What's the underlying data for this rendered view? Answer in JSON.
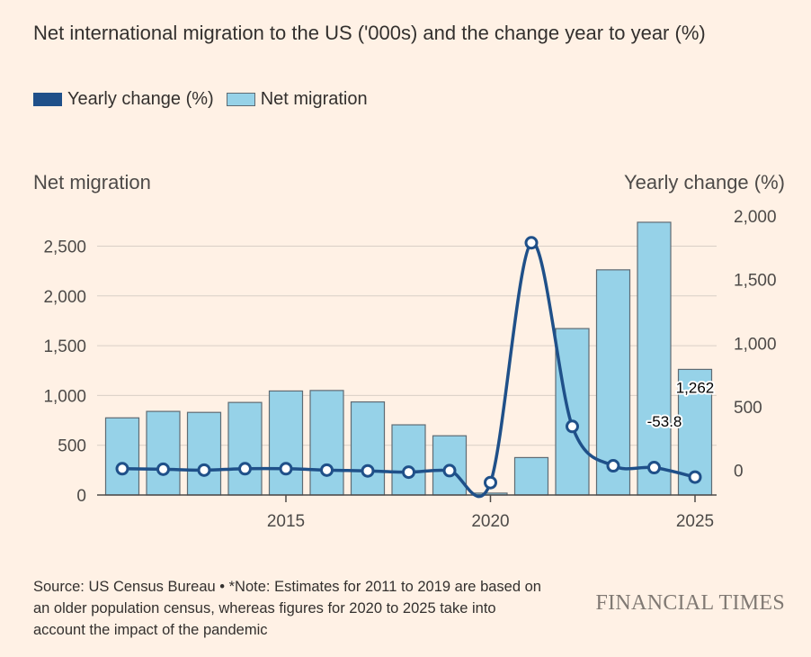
{
  "title": "Net international migration to the US ('000s) and the change year to year (%)",
  "legend": [
    {
      "label": "Yearly change (%)",
      "color": "#1f5089"
    },
    {
      "label": "Net migration",
      "color": "#96d2e8"
    }
  ],
  "left_axis_title": "Net migration",
  "right_axis_title": "Yearly change (%)",
  "source": "Source: US Census Bureau • *Note: Estimates for 2011 to 2019 are based on an older population census, whereas figures for 2020 to 2025 take into account the impact of the pandemic",
  "brand": "FINANCIAL TIMES",
  "chart_data": {
    "type": "bar",
    "title": "Net international migration to the US ('000s) and the change year to year (%)",
    "x": [
      2011,
      2012,
      2013,
      2014,
      2015,
      2016,
      2017,
      2018,
      2019,
      2020,
      2021,
      2022,
      2023,
      2024,
      2025
    ],
    "x_ticks": [
      2015,
      2020,
      2025
    ],
    "x_tick_labels": [
      "2015",
      "2020",
      "2025"
    ],
    "series": [
      {
        "name": "Net migration",
        "type": "bar",
        "axis": "left",
        "color": "#96d2e8",
        "values": [
          775,
          840,
          830,
          930,
          1045,
          1050,
          935,
          705,
          595,
          19,
          376,
          1672,
          2262,
          2740,
          1262
        ]
      },
      {
        "name": "Yearly change (%)",
        "type": "line",
        "axis": "right",
        "color": "#1f5089",
        "values": [
          12,
          8,
          1,
          12,
          12,
          1,
          -5,
          -15,
          -3,
          -97,
          1790,
          345,
          35,
          21,
          -53.8
        ]
      }
    ],
    "left_axis": {
      "label": "Net migration",
      "ylim": [
        0,
        2800
      ],
      "ticks": [
        0,
        500,
        1000,
        1500,
        2000,
        2500
      ],
      "tick_labels": [
        "0",
        "500",
        "1,000",
        "1,500",
        "2,000",
        "2,500"
      ]
    },
    "right_axis": {
      "label": "Yearly change (%)",
      "ylim": [
        -195,
        2000
      ],
      "ticks": [
        0,
        500,
        1000,
        1500,
        2000
      ],
      "tick_labels": [
        "0",
        "500",
        "1,000",
        "1,500",
        "2,000"
      ]
    },
    "annotations": [
      {
        "text": "1,262",
        "series": "Net migration",
        "x": 2025
      },
      {
        "text": "-53.8",
        "series": "Yearly change (%)",
        "x": 2025
      }
    ],
    "legend_position": "top-left",
    "grid": true
  }
}
